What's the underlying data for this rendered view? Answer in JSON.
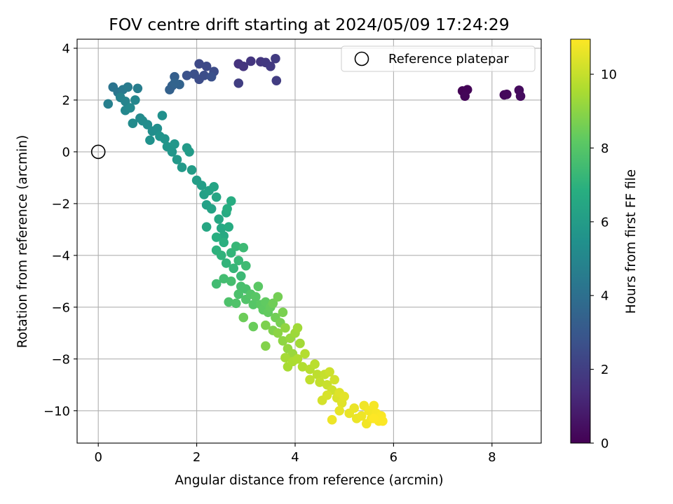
{
  "chart_data": {
    "type": "scatter",
    "title": "FOV centre drift starting at 2024/05/09 17:24:29",
    "xlabel": "Angular distance from reference (arcmin)",
    "ylabel": "Rotation from reference (arcmin)",
    "xlim": [
      -0.43,
      9.0
    ],
    "ylim": [
      -11.25,
      4.35
    ],
    "x_ticks": [
      0,
      2,
      4,
      6,
      8
    ],
    "y_ticks": [
      -10,
      -8,
      -6,
      -4,
      -2,
      0,
      2,
      4
    ],
    "x_tick_labels": [
      "0",
      "2",
      "4",
      "6",
      "8"
    ],
    "y_tick_labels": [
      "−10",
      "−8",
      "−6",
      "−4",
      "−2",
      "0",
      "2",
      "4"
    ],
    "grid": true,
    "legend_position": "top-right",
    "legend": [
      {
        "label": "Reference platepar",
        "marker": "open-circle",
        "x": 0,
        "y": 0
      }
    ],
    "colormap": "viridis",
    "colorbar": {
      "label": "Hours from first FF file",
      "range": [
        0,
        10.95
      ],
      "ticks": [
        0,
        2,
        4,
        6,
        8,
        10
      ],
      "tick_labels": [
        "0",
        "2",
        "4",
        "6",
        "8",
        "10"
      ]
    },
    "points": [
      {
        "x": 7.4,
        "y": 2.35,
        "t": 0.05
      },
      {
        "x": 7.5,
        "y": 2.4,
        "t": 0.1
      },
      {
        "x": 7.45,
        "y": 2.15,
        "t": 0.15
      },
      {
        "x": 8.25,
        "y": 2.2,
        "t": 0.2
      },
      {
        "x": 8.3,
        "y": 2.22,
        "t": 0.25
      },
      {
        "x": 8.55,
        "y": 2.38,
        "t": 0.3
      },
      {
        "x": 8.58,
        "y": 2.15,
        "t": 0.35
      },
      {
        "x": 2.85,
        "y": 3.4,
        "t": 1.6
      },
      {
        "x": 2.95,
        "y": 3.3,
        "t": 1.65
      },
      {
        "x": 3.1,
        "y": 3.5,
        "t": 1.7
      },
      {
        "x": 3.3,
        "y": 3.48,
        "t": 1.75
      },
      {
        "x": 3.4,
        "y": 3.45,
        "t": 1.8
      },
      {
        "x": 3.5,
        "y": 3.3,
        "t": 1.85
      },
      {
        "x": 3.6,
        "y": 3.6,
        "t": 1.9
      },
      {
        "x": 3.62,
        "y": 2.75,
        "t": 1.95
      },
      {
        "x": 2.85,
        "y": 2.65,
        "t": 2.0
      },
      {
        "x": 2.05,
        "y": 3.4,
        "t": 2.4
      },
      {
        "x": 2.2,
        "y": 3.3,
        "t": 2.45
      },
      {
        "x": 2.35,
        "y": 3.1,
        "t": 2.5
      },
      {
        "x": 2.05,
        "y": 2.8,
        "t": 2.55
      },
      {
        "x": 2.15,
        "y": 2.95,
        "t": 2.6
      },
      {
        "x": 1.95,
        "y": 3.0,
        "t": 2.65
      },
      {
        "x": 2.3,
        "y": 2.9,
        "t": 2.7
      },
      {
        "x": 1.8,
        "y": 2.95,
        "t": 2.75
      },
      {
        "x": 1.55,
        "y": 2.9,
        "t": 3.3
      },
      {
        "x": 1.5,
        "y": 2.55,
        "t": 3.35
      },
      {
        "x": 1.45,
        "y": 2.4,
        "t": 3.4
      },
      {
        "x": 1.65,
        "y": 2.6,
        "t": 3.45
      },
      {
        "x": 1.55,
        "y": 2.65,
        "t": 3.5
      },
      {
        "x": 0.3,
        "y": 2.5,
        "t": 4.2
      },
      {
        "x": 0.4,
        "y": 2.3,
        "t": 4.3
      },
      {
        "x": 0.5,
        "y": 2.4,
        "t": 4.4
      },
      {
        "x": 0.6,
        "y": 2.5,
        "t": 4.5
      },
      {
        "x": 0.8,
        "y": 2.45,
        "t": 4.6
      },
      {
        "x": 0.2,
        "y": 1.85,
        "t": 4.7
      },
      {
        "x": 0.45,
        "y": 2.1,
        "t": 4.8
      },
      {
        "x": 0.55,
        "y": 1.95,
        "t": 4.9
      },
      {
        "x": 0.75,
        "y": 2.0,
        "t": 5.0
      },
      {
        "x": 0.55,
        "y": 1.6,
        "t": 5.05
      },
      {
        "x": 0.65,
        "y": 1.7,
        "t": 5.1
      },
      {
        "x": 0.85,
        "y": 1.3,
        "t": 5.15
      },
      {
        "x": 0.7,
        "y": 1.1,
        "t": 5.2
      },
      {
        "x": 0.9,
        "y": 1.2,
        "t": 5.25
      },
      {
        "x": 1.0,
        "y": 1.05,
        "t": 5.3
      },
      {
        "x": 1.1,
        "y": 0.8,
        "t": 5.35
      },
      {
        "x": 1.2,
        "y": 0.9,
        "t": 5.4
      },
      {
        "x": 1.3,
        "y": 1.4,
        "t": 5.45
      },
      {
        "x": 1.05,
        "y": 0.45,
        "t": 5.5
      },
      {
        "x": 1.25,
        "y": 0.6,
        "t": 5.55
      },
      {
        "x": 1.35,
        "y": 0.5,
        "t": 5.6
      },
      {
        "x": 1.4,
        "y": 0.2,
        "t": 5.65
      },
      {
        "x": 1.5,
        "y": 0.0,
        "t": 5.7
      },
      {
        "x": 1.55,
        "y": 0.3,
        "t": 5.75
      },
      {
        "x": 1.6,
        "y": -0.3,
        "t": 5.8
      },
      {
        "x": 1.7,
        "y": -0.6,
        "t": 5.85
      },
      {
        "x": 1.8,
        "y": 0.15,
        "t": 5.9
      },
      {
        "x": 1.85,
        "y": 0.0,
        "t": 5.95
      },
      {
        "x": 1.9,
        "y": -0.7,
        "t": 6.0
      },
      {
        "x": 2.0,
        "y": -1.1,
        "t": 6.05
      },
      {
        "x": 2.1,
        "y": -1.3,
        "t": 6.1
      },
      {
        "x": 2.15,
        "y": -1.65,
        "t": 6.15
      },
      {
        "x": 2.2,
        "y": -2.05,
        "t": 6.2
      },
      {
        "x": 2.25,
        "y": -1.5,
        "t": 6.25
      },
      {
        "x": 2.3,
        "y": -2.2,
        "t": 6.3
      },
      {
        "x": 2.35,
        "y": -1.35,
        "t": 6.35
      },
      {
        "x": 2.4,
        "y": -1.75,
        "t": 6.4
      },
      {
        "x": 2.2,
        "y": -2.9,
        "t": 6.45
      },
      {
        "x": 2.45,
        "y": -2.6,
        "t": 6.5
      },
      {
        "x": 2.5,
        "y": -2.95,
        "t": 6.55
      },
      {
        "x": 2.55,
        "y": -3.25,
        "t": 6.6
      },
      {
        "x": 2.6,
        "y": -2.35,
        "t": 6.65
      },
      {
        "x": 2.65,
        "y": -2.9,
        "t": 6.7
      },
      {
        "x": 2.7,
        "y": -1.9,
        "t": 6.75
      },
      {
        "x": 2.62,
        "y": -2.2,
        "t": 6.8
      },
      {
        "x": 2.4,
        "y": -3.3,
        "t": 6.85
      },
      {
        "x": 2.55,
        "y": -3.5,
        "t": 6.9
      },
      {
        "x": 2.4,
        "y": -3.8,
        "t": 7.0
      },
      {
        "x": 2.5,
        "y": -4.0,
        "t": 7.05
      },
      {
        "x": 2.6,
        "y": -4.3,
        "t": 7.1
      },
      {
        "x": 2.7,
        "y": -3.9,
        "t": 7.15
      },
      {
        "x": 2.75,
        "y": -4.5,
        "t": 7.2
      },
      {
        "x": 2.8,
        "y": -3.65,
        "t": 7.25
      },
      {
        "x": 2.85,
        "y": -4.2,
        "t": 7.3
      },
      {
        "x": 2.9,
        "y": -4.8,
        "t": 7.35
      },
      {
        "x": 2.95,
        "y": -3.7,
        "t": 7.4
      },
      {
        "x": 3.0,
        "y": -4.4,
        "t": 7.45
      },
      {
        "x": 2.4,
        "y": -5.1,
        "t": 7.5
      },
      {
        "x": 2.55,
        "y": -4.9,
        "t": 7.55
      },
      {
        "x": 2.7,
        "y": -5.0,
        "t": 7.6
      },
      {
        "x": 2.9,
        "y": -5.2,
        "t": 7.65
      },
      {
        "x": 3.0,
        "y": -5.3,
        "t": 7.7
      },
      {
        "x": 2.85,
        "y": -5.5,
        "t": 7.75
      },
      {
        "x": 2.65,
        "y": -5.8,
        "t": 7.8
      },
      {
        "x": 2.8,
        "y": -5.85,
        "t": 7.85
      },
      {
        "x": 3.0,
        "y": -5.7,
        "t": 7.9
      },
      {
        "x": 3.1,
        "y": -5.5,
        "t": 7.95
      },
      {
        "x": 3.15,
        "y": -5.9,
        "t": 8.0
      },
      {
        "x": 3.2,
        "y": -5.6,
        "t": 8.05
      },
      {
        "x": 3.25,
        "y": -5.2,
        "t": 8.1
      },
      {
        "x": 3.3,
        "y": -5.9,
        "t": 8.15
      },
      {
        "x": 3.35,
        "y": -6.1,
        "t": 8.2
      },
      {
        "x": 3.4,
        "y": -5.8,
        "t": 8.25
      },
      {
        "x": 3.45,
        "y": -6.2,
        "t": 8.3
      },
      {
        "x": 3.5,
        "y": -6.0,
        "t": 8.35
      },
      {
        "x": 3.15,
        "y": -6.75,
        "t": 8.4
      },
      {
        "x": 2.95,
        "y": -6.4,
        "t": 8.45
      },
      {
        "x": 3.55,
        "y": -5.85,
        "t": 8.5
      },
      {
        "x": 3.6,
        "y": -6.4,
        "t": 8.55
      },
      {
        "x": 3.65,
        "y": -5.6,
        "t": 8.6
      },
      {
        "x": 3.7,
        "y": -6.6,
        "t": 8.65
      },
      {
        "x": 3.75,
        "y": -6.2,
        "t": 8.7
      },
      {
        "x": 3.4,
        "y": -6.7,
        "t": 8.75
      },
      {
        "x": 3.55,
        "y": -6.9,
        "t": 8.8
      },
      {
        "x": 3.4,
        "y": -7.5,
        "t": 8.85
      },
      {
        "x": 3.65,
        "y": -7.0,
        "t": 9.0
      },
      {
        "x": 3.75,
        "y": -7.3,
        "t": 9.05
      },
      {
        "x": 3.8,
        "y": -6.8,
        "t": 9.1
      },
      {
        "x": 3.85,
        "y": -7.6,
        "t": 9.15
      },
      {
        "x": 3.9,
        "y": -7.2,
        "t": 9.2
      },
      {
        "x": 3.95,
        "y": -7.8,
        "t": 9.25
      },
      {
        "x": 4.0,
        "y": -7.0,
        "t": 9.3
      },
      {
        "x": 4.05,
        "y": -6.8,
        "t": 9.35
      },
      {
        "x": 4.1,
        "y": -7.4,
        "t": 9.4
      },
      {
        "x": 3.8,
        "y": -7.95,
        "t": 9.45
      },
      {
        "x": 3.85,
        "y": -8.3,
        "t": 9.5
      },
      {
        "x": 3.95,
        "y": -8.1,
        "t": 9.55
      },
      {
        "x": 4.05,
        "y": -8.0,
        "t": 9.6
      },
      {
        "x": 4.15,
        "y": -8.3,
        "t": 9.65
      },
      {
        "x": 4.2,
        "y": -7.8,
        "t": 9.7
      },
      {
        "x": 4.3,
        "y": -8.4,
        "t": 9.75
      },
      {
        "x": 4.4,
        "y": -8.2,
        "t": 9.8
      },
      {
        "x": 4.45,
        "y": -8.6,
        "t": 9.85
      },
      {
        "x": 4.3,
        "y": -8.8,
        "t": 9.9
      },
      {
        "x": 4.5,
        "y": -8.9,
        "t": 9.95
      },
      {
        "x": 4.6,
        "y": -8.6,
        "t": 10.0
      },
      {
        "x": 4.65,
        "y": -9.0,
        "t": 10.05
      },
      {
        "x": 4.7,
        "y": -8.5,
        "t": 10.1
      },
      {
        "x": 4.75,
        "y": -9.2,
        "t": 10.15
      },
      {
        "x": 4.8,
        "y": -8.8,
        "t": 10.2
      },
      {
        "x": 4.55,
        "y": -9.6,
        "t": 10.25
      },
      {
        "x": 4.65,
        "y": -9.4,
        "t": 10.3
      },
      {
        "x": 4.85,
        "y": -9.5,
        "t": 10.35
      },
      {
        "x": 4.9,
        "y": -9.3,
        "t": 10.4
      },
      {
        "x": 4.95,
        "y": -9.7,
        "t": 10.45
      },
      {
        "x": 5.0,
        "y": -9.45,
        "t": 10.5
      },
      {
        "x": 4.9,
        "y": -10.0,
        "t": 10.55
      },
      {
        "x": 5.1,
        "y": -10.1,
        "t": 10.6
      },
      {
        "x": 5.2,
        "y": -9.9,
        "t": 10.62
      },
      {
        "x": 5.25,
        "y": -10.3,
        "t": 10.65
      },
      {
        "x": 4.75,
        "y": -10.35,
        "t": 10.68
      },
      {
        "x": 5.35,
        "y": -10.2,
        "t": 10.7
      },
      {
        "x": 5.4,
        "y": -9.8,
        "t": 10.72
      },
      {
        "x": 5.45,
        "y": -10.5,
        "t": 10.75
      },
      {
        "x": 5.5,
        "y": -10.0,
        "t": 10.78
      },
      {
        "x": 5.55,
        "y": -10.3,
        "t": 10.8
      },
      {
        "x": 5.6,
        "y": -9.8,
        "t": 10.82
      },
      {
        "x": 5.65,
        "y": -10.1,
        "t": 10.85
      },
      {
        "x": 5.7,
        "y": -10.4,
        "t": 10.88
      },
      {
        "x": 5.75,
        "y": -10.2,
        "t": 10.9
      },
      {
        "x": 5.78,
        "y": -10.4,
        "t": 10.92
      },
      {
        "x": 5.6,
        "y": -10.3,
        "t": 10.95
      }
    ]
  }
}
